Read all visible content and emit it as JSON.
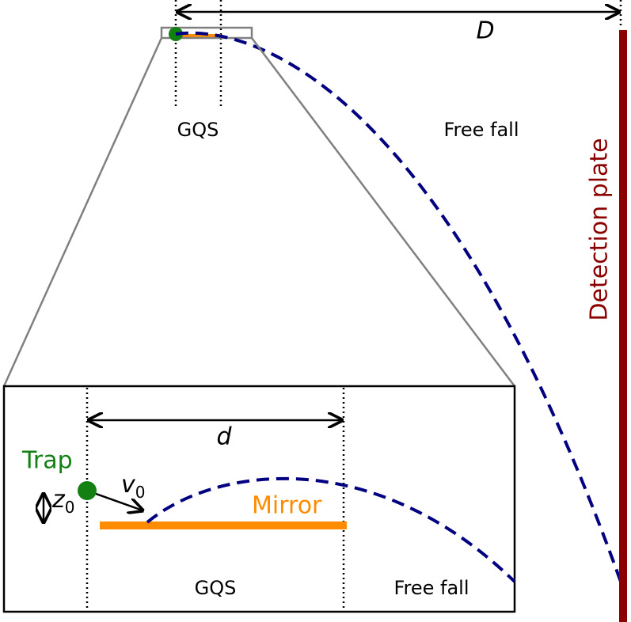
{
  "overview": {
    "distance_label": "D",
    "gqs_label": "GQS",
    "free_fall_label": "Free fall",
    "detector_label": "Detection plate"
  },
  "inset": {
    "distance_label": "d",
    "trap_label": "Trap",
    "velocity_label": {
      "base": "v",
      "sub": "0"
    },
    "height_label": {
      "base": "z",
      "sub": "0"
    },
    "mirror_label": "Mirror",
    "gqs_label": "GQS",
    "free_fall_label": "Free fall"
  }
}
